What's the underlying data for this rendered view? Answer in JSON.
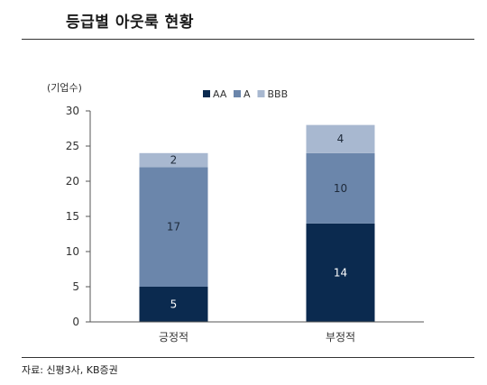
{
  "title": "등급별 아웃룩 현황",
  "source": "자료: 신평3사, KB증권",
  "colors": {
    "AA": "#0b2a4f",
    "A": "#6b86ab",
    "BBB": "#a8b8d0"
  },
  "chart_data": {
    "type": "bar",
    "stacked": true,
    "title": "등급별 아웃룩 현황",
    "ylabel": "(기업수)",
    "ylim": [
      0,
      30
    ],
    "yticks": [
      0,
      5,
      10,
      15,
      20,
      25,
      30
    ],
    "categories": [
      "긍정적",
      "부정적"
    ],
    "legend_position": "top",
    "series": [
      {
        "name": "AA",
        "values": [
          5,
          14
        ]
      },
      {
        "name": "A",
        "values": [
          17,
          10
        ]
      },
      {
        "name": "BBB",
        "values": [
          2,
          4
        ]
      }
    ]
  }
}
